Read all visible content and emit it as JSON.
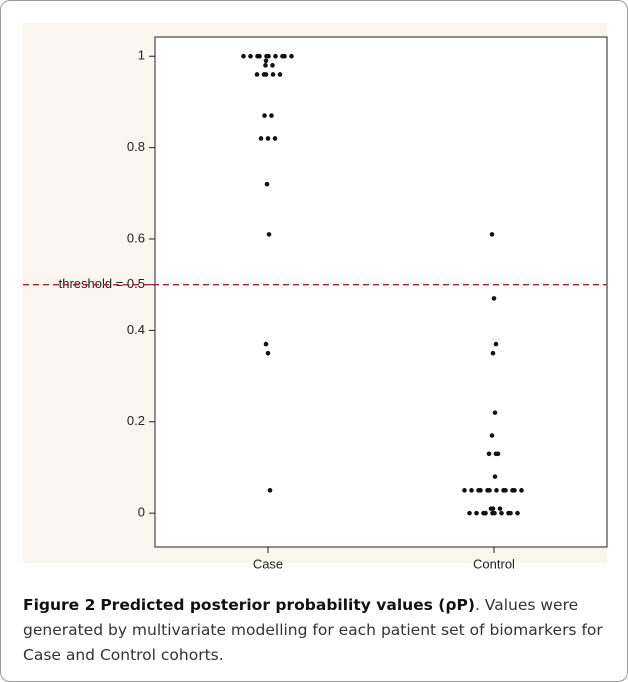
{
  "chart_data": {
    "type": "strip",
    "categories": [
      "Case",
      "Control"
    ],
    "series": [
      {
        "color": "#111111",
        "values": [
          1,
          1,
          1,
          1,
          1,
          1,
          1,
          1,
          1,
          1,
          0.99,
          0.98,
          0.98,
          0.96,
          0.96,
          0.96,
          0.96,
          0.96,
          0.87,
          0.87,
          0.82,
          0.82,
          0.82,
          0.72,
          0.61,
          0.37,
          0.35,
          0.05
        ]
      },
      {
        "color": "#111111",
        "values": [
          0.61,
          0.47,
          0.37,
          0.35,
          0.22,
          0.17,
          0.13,
          0.13,
          0.13,
          0.08,
          0.05,
          0.05,
          0.05,
          0.05,
          0.05,
          0.05,
          0.05,
          0.05,
          0.05,
          0.05,
          0.05,
          0.05,
          0.01,
          0.01,
          0.01,
          0,
          0,
          0,
          0,
          0,
          0,
          0,
          0,
          0,
          0
        ]
      }
    ],
    "ylim": [
      -0.074,
      1.042
    ],
    "yticks": [
      0,
      0.2,
      0.4,
      0.6,
      0.8,
      1
    ],
    "threshold": {
      "value": 0.5,
      "label": "threshold = 0.5",
      "color": "#b22222"
    }
  },
  "caption": {
    "label": "Figure 2",
    "title": "Predicted posterior probability values (ρP)",
    "text": ". Values were generated by multivariate modelling for each patient set of biomarkers for Case and Control cohorts."
  }
}
